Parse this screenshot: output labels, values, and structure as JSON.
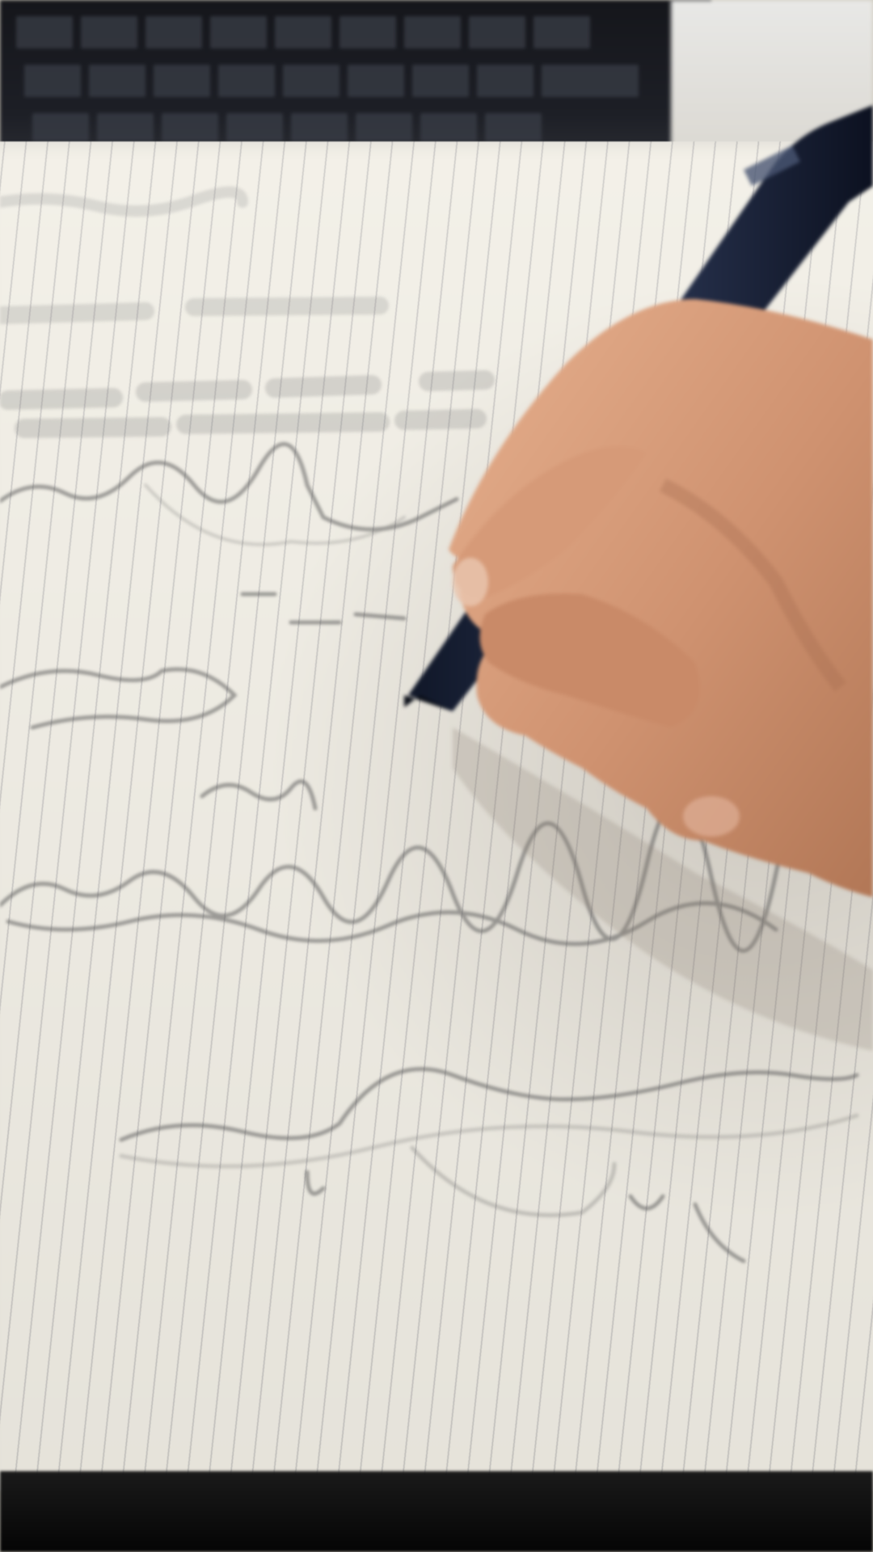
{
  "scene": {
    "description_type": "photo",
    "colors": {
      "paper": "#f2efe6",
      "ruled_line": "#6e6e78",
      "keyboard": "#15161b",
      "pen": "#1c2438",
      "skin": "#d9a07e",
      "ink": "#555555",
      "table": "#0a0a0a"
    }
  }
}
